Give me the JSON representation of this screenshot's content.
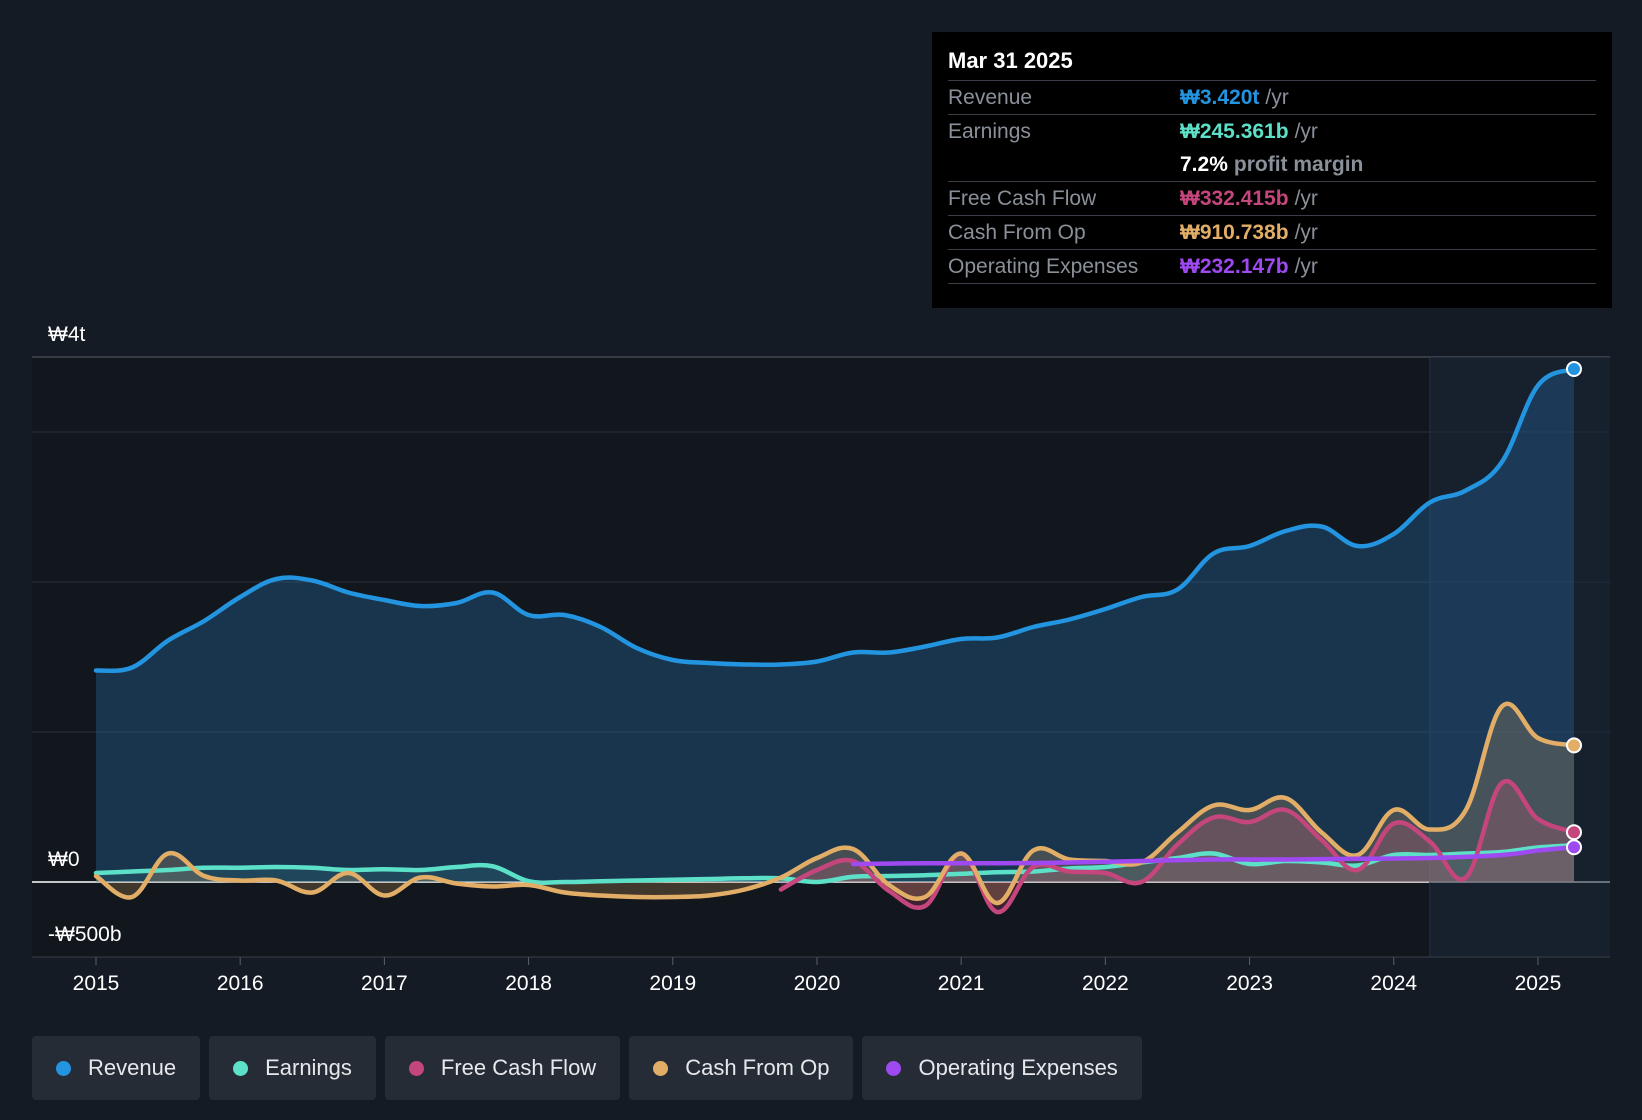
{
  "chart_data": {
    "type": "area",
    "title": "",
    "currency_symbol": "₩",
    "x_range": [
      2015,
      2025.25
    ],
    "y_range_billions": [
      -500,
      3500
    ],
    "y_tick_labels": [
      {
        "value": 3500,
        "label": "₩4t"
      },
      {
        "value": 0,
        "label": "₩0"
      },
      {
        "value": -500,
        "label": "-₩500b"
      }
    ],
    "x_tick_labels": [
      "2015",
      "2016",
      "2017",
      "2018",
      "2019",
      "2020",
      "2021",
      "2022",
      "2023",
      "2024",
      "2025"
    ],
    "x_ticks": [
      2015,
      2016,
      2017,
      2018,
      2019,
      2020,
      2021,
      2022,
      2023,
      2024,
      2025
    ],
    "gridlines_billions": [
      3500,
      3000,
      2000,
      1000,
      0,
      -500
    ],
    "forecast_shade_start": 2024.25,
    "series": [
      {
        "name": "Revenue",
        "color": "#2394df",
        "fill": true,
        "end_marker": true,
        "points": [
          [
            2015,
            1410
          ],
          [
            2015.25,
            1430
          ],
          [
            2015.5,
            1610
          ],
          [
            2015.75,
            1740
          ],
          [
            2016,
            1900
          ],
          [
            2016.25,
            2020
          ],
          [
            2016.5,
            2010
          ],
          [
            2016.75,
            1930
          ],
          [
            2017,
            1880
          ],
          [
            2017.25,
            1840
          ],
          [
            2017.5,
            1860
          ],
          [
            2017.75,
            1930
          ],
          [
            2018,
            1780
          ],
          [
            2018.25,
            1780
          ],
          [
            2018.5,
            1700
          ],
          [
            2018.75,
            1560
          ],
          [
            2019,
            1480
          ],
          [
            2019.25,
            1460
          ],
          [
            2019.5,
            1450
          ],
          [
            2019.75,
            1450
          ],
          [
            2020,
            1470
          ],
          [
            2020.25,
            1530
          ],
          [
            2020.5,
            1530
          ],
          [
            2020.75,
            1570
          ],
          [
            2021,
            1620
          ],
          [
            2021.25,
            1630
          ],
          [
            2021.5,
            1700
          ],
          [
            2021.75,
            1750
          ],
          [
            2022,
            1820
          ],
          [
            2022.25,
            1900
          ],
          [
            2022.5,
            1950
          ],
          [
            2022.75,
            2190
          ],
          [
            2023,
            2240
          ],
          [
            2023.25,
            2340
          ],
          [
            2023.5,
            2370
          ],
          [
            2023.75,
            2240
          ],
          [
            2024,
            2320
          ],
          [
            2024.25,
            2530
          ],
          [
            2024.5,
            2610
          ],
          [
            2024.75,
            2800
          ],
          [
            2025,
            3310
          ],
          [
            2025.25,
            3420
          ]
        ]
      },
      {
        "name": "Earnings",
        "color": "#5ce1c8",
        "fill": true,
        "end_marker": false,
        "points": [
          [
            2015,
            60
          ],
          [
            2015.25,
            70
          ],
          [
            2015.5,
            80
          ],
          [
            2015.75,
            95
          ],
          [
            2016,
            95
          ],
          [
            2016.25,
            100
          ],
          [
            2016.5,
            95
          ],
          [
            2016.75,
            80
          ],
          [
            2017,
            85
          ],
          [
            2017.25,
            80
          ],
          [
            2017.5,
            100
          ],
          [
            2017.75,
            105
          ],
          [
            2018,
            5
          ],
          [
            2018.25,
            0
          ],
          [
            2018.5,
            5
          ],
          [
            2018.75,
            10
          ],
          [
            2019,
            15
          ],
          [
            2019.25,
            20
          ],
          [
            2019.5,
            25
          ],
          [
            2019.75,
            25
          ],
          [
            2020,
            0
          ],
          [
            2020.25,
            35
          ],
          [
            2020.5,
            40
          ],
          [
            2020.75,
            45
          ],
          [
            2021,
            55
          ],
          [
            2021.25,
            65
          ],
          [
            2021.5,
            70
          ],
          [
            2021.75,
            90
          ],
          [
            2022,
            100
          ],
          [
            2022.25,
            130
          ],
          [
            2022.5,
            160
          ],
          [
            2022.75,
            190
          ],
          [
            2023,
            120
          ],
          [
            2023.25,
            140
          ],
          [
            2023.5,
            130
          ],
          [
            2023.75,
            110
          ],
          [
            2024,
            180
          ],
          [
            2024.25,
            180
          ],
          [
            2024.5,
            190
          ],
          [
            2024.75,
            200
          ],
          [
            2025,
            230
          ],
          [
            2025.25,
            245
          ]
        ]
      },
      {
        "name": "Free Cash Flow",
        "color": "#c4467c",
        "fill": true,
        "end_marker": true,
        "points": [
          [
            2019.75,
            -50
          ],
          [
            2020,
            80
          ],
          [
            2020.25,
            140
          ],
          [
            2020.5,
            -60
          ],
          [
            2020.75,
            -160
          ],
          [
            2021,
            190
          ],
          [
            2021.25,
            -200
          ],
          [
            2021.5,
            100
          ],
          [
            2021.75,
            70
          ],
          [
            2022,
            60
          ],
          [
            2022.25,
            0
          ],
          [
            2022.5,
            250
          ],
          [
            2022.75,
            430
          ],
          [
            2023,
            400
          ],
          [
            2023.25,
            480
          ],
          [
            2023.5,
            280
          ],
          [
            2023.75,
            80
          ],
          [
            2024,
            390
          ],
          [
            2024.25,
            270
          ],
          [
            2024.5,
            30
          ],
          [
            2024.75,
            660
          ],
          [
            2025,
            420
          ],
          [
            2025.25,
            332
          ]
        ]
      },
      {
        "name": "Cash From Op",
        "color": "#e2ae67",
        "fill": true,
        "end_marker": true,
        "points": [
          [
            2015,
            40
          ],
          [
            2015.25,
            -100
          ],
          [
            2015.5,
            190
          ],
          [
            2015.75,
            40
          ],
          [
            2016,
            10
          ],
          [
            2016.25,
            10
          ],
          [
            2016.5,
            -70
          ],
          [
            2016.75,
            60
          ],
          [
            2017,
            -90
          ],
          [
            2017.25,
            30
          ],
          [
            2017.5,
            -10
          ],
          [
            2017.75,
            -30
          ],
          [
            2018,
            -20
          ],
          [
            2018.25,
            -70
          ],
          [
            2018.5,
            -90
          ],
          [
            2018.75,
            -100
          ],
          [
            2019,
            -100
          ],
          [
            2019.25,
            -90
          ],
          [
            2019.5,
            -50
          ],
          [
            2019.75,
            30
          ],
          [
            2020,
            160
          ],
          [
            2020.25,
            220
          ],
          [
            2020.5,
            -20
          ],
          [
            2020.75,
            -100
          ],
          [
            2021,
            190
          ],
          [
            2021.25,
            -140
          ],
          [
            2021.5,
            210
          ],
          [
            2021.75,
            150
          ],
          [
            2022,
            140
          ],
          [
            2022.25,
            130
          ],
          [
            2022.5,
            330
          ],
          [
            2022.75,
            510
          ],
          [
            2023,
            480
          ],
          [
            2023.25,
            560
          ],
          [
            2023.5,
            330
          ],
          [
            2023.75,
            180
          ],
          [
            2024,
            480
          ],
          [
            2024.25,
            350
          ],
          [
            2024.5,
            480
          ],
          [
            2024.75,
            1170
          ],
          [
            2025,
            960
          ],
          [
            2025.25,
            911
          ]
        ]
      },
      {
        "name": "Operating Expenses",
        "color": "#9f49f1",
        "fill": false,
        "end_marker": true,
        "points": [
          [
            2020.25,
            120
          ],
          [
            2020.75,
            125
          ],
          [
            2021.25,
            125
          ],
          [
            2021.75,
            130
          ],
          [
            2022.25,
            140
          ],
          [
            2022.75,
            150
          ],
          [
            2023.25,
            150
          ],
          [
            2023.75,
            155
          ],
          [
            2024.25,
            160
          ],
          [
            2024.75,
            180
          ],
          [
            2025,
            210
          ],
          [
            2025.25,
            232
          ]
        ]
      }
    ]
  },
  "tooltip": {
    "date": "Mar 31 2025",
    "rows": [
      {
        "label": "Revenue",
        "value": "₩3.420t",
        "unit": "/yr",
        "color": "#2394df"
      },
      {
        "label": "Earnings",
        "value": "₩245.361b",
        "unit": "/yr",
        "color": "#5ce1c8"
      },
      {
        "label": "Free Cash Flow",
        "value": "₩332.415b",
        "unit": "/yr",
        "color": "#c4467c"
      },
      {
        "label": "Cash From Op",
        "value": "₩910.738b",
        "unit": "/yr",
        "color": "#e2ae67"
      },
      {
        "label": "Operating Expenses",
        "value": "₩232.147b",
        "unit": "/yr",
        "color": "#9f49f1"
      }
    ],
    "profit_margin": {
      "value": "7.2%",
      "text": "profit margin"
    }
  },
  "legend": [
    {
      "label": "Revenue",
      "color": "#2394df"
    },
    {
      "label": "Earnings",
      "color": "#5ce1c8"
    },
    {
      "label": "Free Cash Flow",
      "color": "#c4467c"
    },
    {
      "label": "Cash From Op",
      "color": "#e2ae67"
    },
    {
      "label": "Operating Expenses",
      "color": "#9f49f1"
    }
  ]
}
